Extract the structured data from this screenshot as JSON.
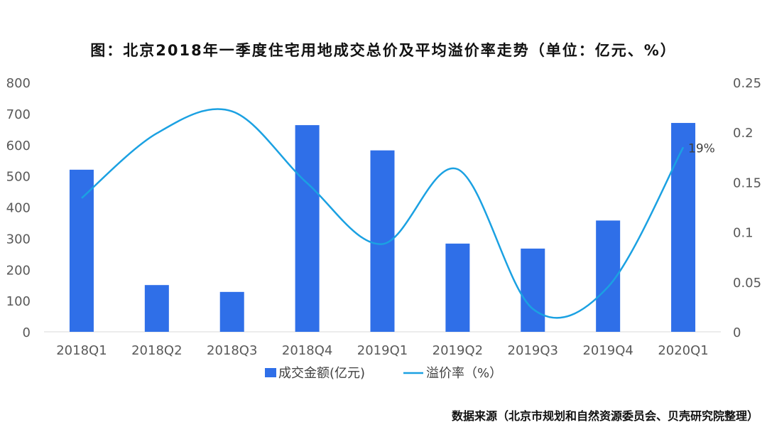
{
  "chart_data": {
    "title": "图：北京2018年一季度住宅用地成交总价及平均溢价率走势（单位：亿元、%）",
    "type": "bar",
    "categories": [
      "2018Q1",
      "2018Q2",
      "2018Q3",
      "2018Q4",
      "2019Q1",
      "2019Q2",
      "2019Q3",
      "2019Q4",
      "2020Q1"
    ],
    "series": [
      {
        "name": "成交金额(亿元)",
        "type": "bar",
        "axis": "left",
        "color": "#2F6FE8",
        "values": [
          520,
          150,
          128,
          663,
          582,
          283,
          267,
          357,
          670
        ]
      },
      {
        "name": "溢价率（%）",
        "type": "line",
        "axis": "right",
        "color": "#1BA1E2",
        "values": [
          0.134,
          0.199,
          0.221,
          0.149,
          0.088,
          0.163,
          0.023,
          0.045,
          0.185
        ]
      }
    ],
    "yleft": {
      "ylim": [
        0,
        800
      ],
      "ticks": [
        "0",
        "100",
        "200",
        "300",
        "400",
        "500",
        "600",
        "700",
        "800"
      ]
    },
    "yright": {
      "ylim": [
        0,
        0.25
      ],
      "ticks": [
        "0",
        "0.05",
        "0.1",
        "0.15",
        "0.2",
        "0.25"
      ]
    },
    "data_labels": [
      {
        "category": "2020Q1",
        "series": "溢价率（%）",
        "text": "19%"
      }
    ],
    "legend": "bottom",
    "grid": false
  },
  "source": "数据来源（北京市规划和自然资源委员会、贝壳研究院整理）"
}
